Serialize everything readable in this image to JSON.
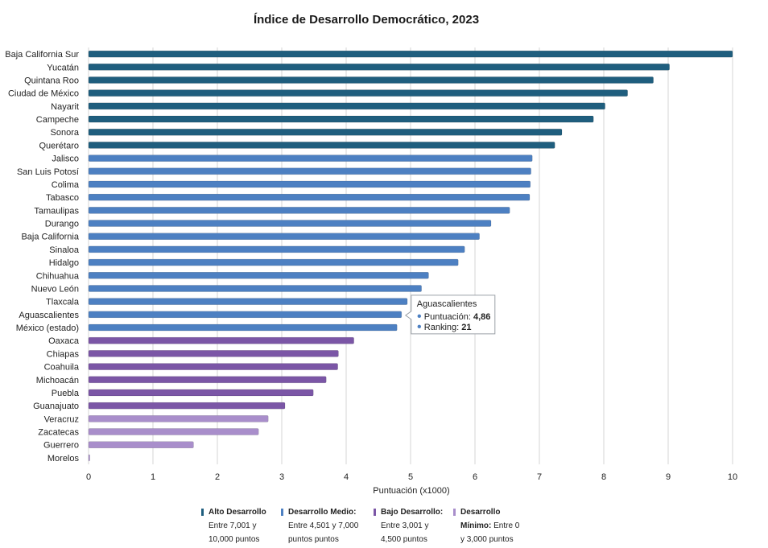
{
  "chart_data": {
    "type": "bar",
    "orientation": "horizontal",
    "title": "Índice de Desarrollo Democrático, 2023",
    "xlabel": "Puntuación (x1000)",
    "xlim": [
      0,
      10
    ],
    "xticks": [
      "0",
      "1",
      "2",
      "3",
      "4",
      "5",
      "6",
      "7",
      "8",
      "9",
      "10"
    ],
    "grid": true,
    "categories": [
      "Baja California Sur",
      "Yucatán",
      "Quintana Roo",
      "Ciudad de México",
      "Nayarit",
      "Campeche",
      "Sonora",
      "Querétaro",
      "Jalisco",
      "San Luis Potosí",
      "Colima",
      "Tabasco",
      "Tamaulipas",
      "Durango",
      "Baja California",
      "Sinaloa",
      "Hidalgo",
      "Chihuahua",
      "Nuevo León",
      "Tlaxcala",
      "Aguascalientes",
      "México (estado)",
      "Oaxaca",
      "Chiapas",
      "Coahuila",
      "Michoacán",
      "Puebla",
      "Guanajuato",
      "Veracruz",
      "Zacatecas",
      "Guerrero",
      "Morelos"
    ],
    "values": [
      10.0,
      9.02,
      8.77,
      8.37,
      8.02,
      7.84,
      7.35,
      7.24,
      6.89,
      6.87,
      6.86,
      6.85,
      6.54,
      6.25,
      6.07,
      5.84,
      5.74,
      5.28,
      5.17,
      4.95,
      4.86,
      4.79,
      4.12,
      3.88,
      3.87,
      3.69,
      3.49,
      3.05,
      2.79,
      2.64,
      1.63,
      0.02
    ],
    "levels": [
      "alto",
      "alto",
      "alto",
      "alto",
      "alto",
      "alto",
      "alto",
      "alto",
      "medio",
      "medio",
      "medio",
      "medio",
      "medio",
      "medio",
      "medio",
      "medio",
      "medio",
      "medio",
      "medio",
      "medio",
      "medio",
      "medio",
      "bajo",
      "bajo",
      "bajo",
      "bajo",
      "bajo",
      "bajo",
      "minimo",
      "minimo",
      "minimo",
      "minimo"
    ],
    "colors": {
      "alto": "#1f5e7e",
      "medio": "#4d80c2",
      "bajo": "#7b56a6",
      "minimo": "#a98ecb"
    },
    "tooltip": {
      "category_index": 20,
      "title": "Aguascalientes",
      "score_label": "Puntuación:",
      "score_value": "4,86",
      "rank_label": "Ranking:",
      "rank_value": "21"
    },
    "legend": [
      {
        "key": "alto",
        "name": "Alto Desarrollo",
        "desc": "Entre 7,001 y\n10,000 puntos"
      },
      {
        "key": "medio",
        "name": "Desarrollo Medio:",
        "desc": "Entre 4,501 y 7,000\npuntos puntos"
      },
      {
        "key": "bajo",
        "name": "Bajo Desarrollo:",
        "desc": "Entre 3,001 y\n4,500 puntos"
      },
      {
        "key": "minimo",
        "name": "Desarrollo",
        "name_cont": "Mínimo:",
        "desc_inline": "Entre 0",
        "desc": "y 3,000 puntos"
      }
    ]
  }
}
